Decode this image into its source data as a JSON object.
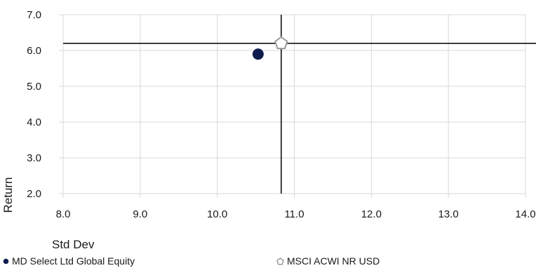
{
  "chart_data": {
    "type": "scatter",
    "xlabel": "Std Dev",
    "ylabel": "Return",
    "xlim": [
      8.0,
      14.0
    ],
    "ylim": [
      2.0,
      7.0
    ],
    "x_ticks": [
      "8.0",
      "9.0",
      "10.0",
      "11.0",
      "12.0",
      "13.0",
      "14.0"
    ],
    "y_ticks": [
      "2.0",
      "3.0",
      "4.0",
      "5.0",
      "6.0",
      "7.0"
    ],
    "grid": true,
    "legend_position": "bottom",
    "series": [
      {
        "name": "MD Select Ltd Global Equity",
        "x": 10.53,
        "y": 5.9,
        "marker": "circle",
        "color": "#0d1b4d"
      },
      {
        "name": "MSCI ACWI NR USD",
        "x": 10.83,
        "y": 6.2,
        "marker": "pentagon",
        "color": "#9a9a9a"
      }
    ],
    "crosshair": {
      "x": 10.83,
      "y": 6.2,
      "color": "#000000"
    }
  }
}
